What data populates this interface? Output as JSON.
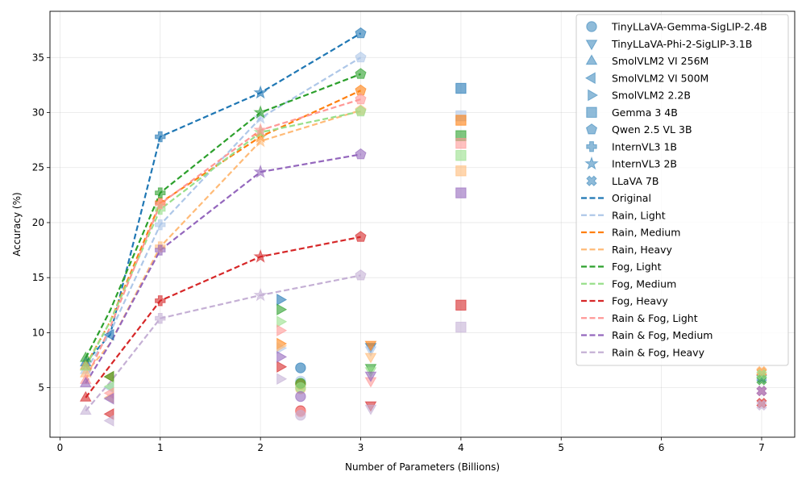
{
  "chart_data": {
    "type": "scatter",
    "title": "",
    "xlabel": "Number of Parameters (Billions)",
    "ylabel": "Accuracy (%)",
    "xlim": [
      -0.1,
      7.33
    ],
    "ylim": [
      0.5,
      39.2
    ],
    "xticks": [
      0,
      1,
      2,
      3,
      4,
      5,
      6,
      7
    ],
    "yticks": [
      5,
      10,
      15,
      20,
      25,
      30,
      35
    ],
    "grid": true,
    "legend_position": "top-right",
    "conditions": [
      {
        "name": "Original",
        "color": "#1f77b4",
        "light": false
      },
      {
        "name": "Rain, Light",
        "color": "#aec7e8",
        "light": true
      },
      {
        "name": "Rain, Medium",
        "color": "#ff7f0e",
        "light": false
      },
      {
        "name": "Rain, Heavy",
        "color": "#ffbb78",
        "light": true
      },
      {
        "name": "Fog, Light",
        "color": "#2ca02c",
        "light": false
      },
      {
        "name": "Fog, Medium",
        "color": "#98df8a",
        "light": true
      },
      {
        "name": "Fog, Heavy",
        "color": "#d62728",
        "light": false
      },
      {
        "name": "Rain & Fog, Light",
        "color": "#ff9896",
        "light": true
      },
      {
        "name": "Rain & Fog, Medium",
        "color": "#9467bd",
        "light": false
      },
      {
        "name": "Rain & Fog, Heavy",
        "color": "#c5b0d5",
        "light": true
      }
    ],
    "models": [
      {
        "name": "TinyLLaVA-Gemma-SigLIP-2.4B",
        "marker": "circle",
        "params": 2.4,
        "values": [
          6.8,
          5.6,
          5.3,
          4.9,
          5.4,
          5.0,
          2.9,
          2.8,
          4.2,
          2.5
        ]
      },
      {
        "name": "TinyLLaVA-Phi-2-SigLIP-3.1B",
        "marker": "triangle-down",
        "params": 3.1,
        "values": [
          8.7,
          8.4,
          8.9,
          7.8,
          6.8,
          6.5,
          3.4,
          5.6,
          6.1,
          3.1
        ]
      },
      {
        "name": "SmolVLM2 VI 256M",
        "marker": "triangle-up",
        "params": 0.256,
        "values": [
          7.3,
          6.6,
          7.0,
          6.3,
          7.7,
          6.9,
          4.1,
          5.7,
          5.4,
          2.9
        ]
      },
      {
        "name": "SmolVLM2 VI 500M",
        "marker": "triangle-left",
        "params": 0.5,
        "values": [
          9.8,
          5.0,
          6.0,
          4.1,
          6.0,
          5.1,
          2.6,
          4.5,
          4.0,
          2.0
        ]
      },
      {
        "name": "SmolVLM2 2.2B",
        "marker": "triangle-right",
        "params": 2.2,
        "values": [
          13.0,
          8.6,
          9.0,
          8.8,
          12.1,
          11.0,
          6.9,
          10.2,
          7.8,
          5.8
        ]
      },
      {
        "name": "Gemma 3 4B",
        "marker": "square",
        "params": 4.0,
        "values": [
          32.2,
          29.7,
          29.3,
          24.7,
          27.9,
          26.1,
          12.5,
          27.2,
          22.7,
          10.5
        ]
      },
      {
        "name": "Qwen 2.5 VL 3B",
        "marker": "pentagon",
        "params": 3.0,
        "values": [
          37.2,
          35.0,
          32.0,
          30.2,
          33.5,
          30.1,
          18.7,
          31.2,
          26.2,
          15.2
        ]
      },
      {
        "name": "InternVL3 1B",
        "marker": "plus",
        "params": 1.0,
        "values": [
          27.8,
          19.8,
          21.8,
          17.8,
          22.7,
          21.2,
          12.9,
          21.7,
          17.5,
          11.3
        ]
      },
      {
        "name": "InternVL3 2B",
        "marker": "star",
        "params": 2.0,
        "values": [
          31.8,
          29.5,
          27.8,
          27.4,
          30.0,
          28.2,
          16.9,
          28.4,
          24.6,
          13.4
        ]
      },
      {
        "name": "LLaVA 7B",
        "marker": "x",
        "params": 7.0,
        "values": [
          5.9,
          6.0,
          6.4,
          6.5,
          5.7,
          6.2,
          3.6,
          4.7,
          4.7,
          3.4
        ]
      }
    ],
    "line_points": {
      "x": [
        0.256,
        0.5,
        1.0,
        2.0,
        3.0
      ],
      "series": [
        {
          "name": "Original",
          "values": [
            7.3,
            9.8,
            27.8,
            31.8,
            37.2
          ]
        },
        {
          "name": "Rain, Light",
          "values": [
            6.6,
            10.0,
            19.8,
            29.5,
            35.0
          ]
        },
        {
          "name": "Rain, Medium",
          "values": [
            7.0,
            11.0,
            21.8,
            27.8,
            32.0
          ]
        },
        {
          "name": "Rain, Heavy",
          "values": [
            6.3,
            9.0,
            17.8,
            27.4,
            30.2
          ]
        },
        {
          "name": "Fog, Light",
          "values": [
            7.7,
            12.0,
            22.7,
            30.0,
            33.5
          ]
        },
        {
          "name": "Fog, Medium",
          "values": [
            6.9,
            11.0,
            21.2,
            28.2,
            30.1
          ]
        },
        {
          "name": "Fog, Heavy",
          "values": [
            4.1,
            7.0,
            12.9,
            16.9,
            18.7
          ]
        },
        {
          "name": "Rain & Fog, Light",
          "values": [
            5.7,
            10.5,
            21.7,
            28.4,
            31.2
          ]
        },
        {
          "name": "Rain & Fog, Medium",
          "values": [
            5.4,
            9.0,
            17.5,
            24.6,
            26.2
          ]
        },
        {
          "name": "Rain & Fog, Heavy",
          "values": [
            2.9,
            5.5,
            11.3,
            13.4,
            15.2
          ]
        }
      ]
    }
  }
}
